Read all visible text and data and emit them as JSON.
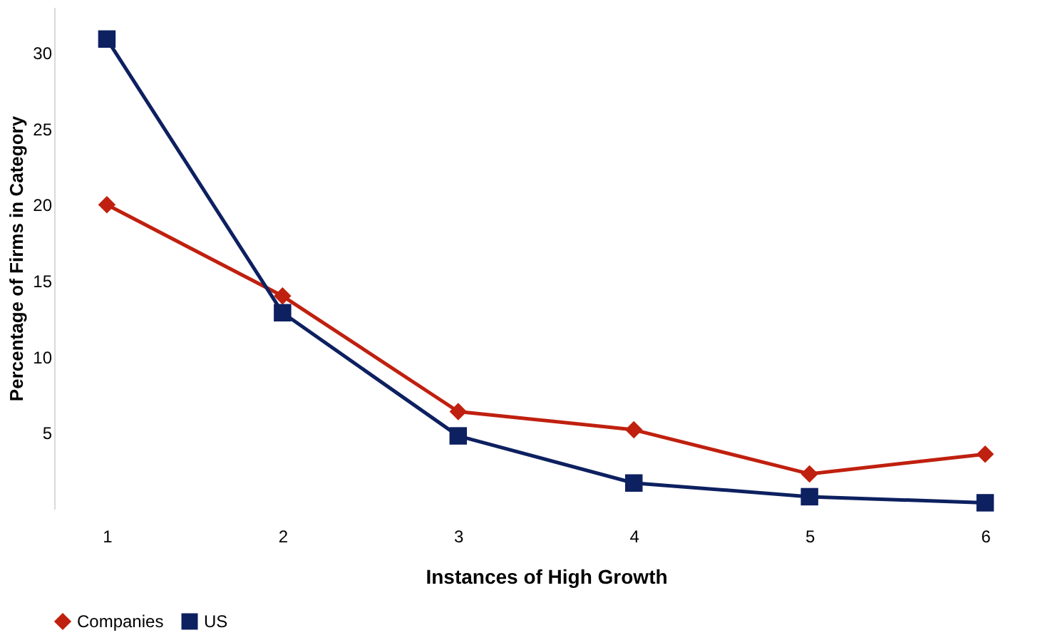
{
  "chart_data": {
    "type": "line",
    "xlabel": "Instances of High Growth",
    "ylabel": "Percentage of Firms in Category",
    "categories": [
      "1",
      "2",
      "3",
      "4",
      "5",
      "6"
    ],
    "series": [
      {
        "name": "Companies",
        "color": "#c0200f",
        "marker": "diamond",
        "values": [
          20,
          14,
          6.4,
          5.2,
          2.3,
          3.6
        ]
      },
      {
        "name": "US",
        "color": "#0d2060",
        "marker": "square",
        "values": [
          30.9,
          12.9,
          4.8,
          1.7,
          0.8,
          0.4
        ]
      }
    ],
    "ylim": [
      0,
      33
    ],
    "yticks": [
      5,
      10,
      15,
      20,
      25,
      30
    ],
    "grid": false,
    "legend": "bottom"
  }
}
